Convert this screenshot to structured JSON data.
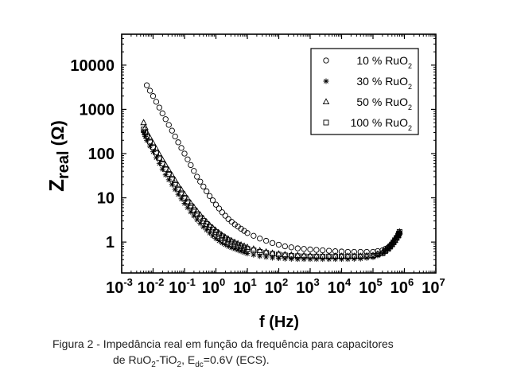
{
  "chart_data": {
    "type": "scatter",
    "xlabel": "f (Hz)",
    "ylabel_main": "Z",
    "ylabel_sub": "real",
    "ylabel_unit": "(Ω)",
    "x_scale": "log",
    "y_scale": "log",
    "xlim": [
      0.001,
      10000000
    ],
    "ylim": [
      0.2,
      50000
    ],
    "x_tick_exponents": [
      "-3",
      "-2",
      "-1",
      "0",
      "1",
      "2",
      "3",
      "4",
      "5",
      "6",
      "7"
    ],
    "x_tick_base": "10",
    "y_ticks": [
      {
        "value": 10000,
        "label": "10000"
      },
      {
        "value": 1000,
        "label": "1000"
      },
      {
        "value": 100,
        "label": "100"
      },
      {
        "value": 10,
        "label": "10"
      },
      {
        "value": 1,
        "label": "1"
      }
    ],
    "grid": false,
    "legend_position": "top-right",
    "series": [
      {
        "name": "10 % RuO2",
        "name_main": "10 % RuO",
        "name_sub": "2",
        "marker": "circle",
        "x": [
          0.0063,
          0.01,
          0.0158,
          0.025,
          0.04,
          0.063,
          0.1,
          0.158,
          0.25,
          0.4,
          0.63,
          1,
          1.58,
          2.5,
          4,
          6.3,
          10,
          25,
          63,
          158,
          400,
          1000,
          2500,
          6300,
          15800,
          40000,
          100000,
          200000,
          300000,
          400000,
          500000,
          630000,
          700000
        ],
        "y": [
          3500,
          2000,
          1100,
          600,
          330,
          180,
          100,
          55,
          30,
          18,
          11,
          7,
          4.7,
          3.3,
          2.5,
          2,
          1.6,
          1.2,
          0.95,
          0.8,
          0.72,
          0.68,
          0.65,
          0.62,
          0.6,
          0.6,
          0.6,
          0.65,
          0.75,
          0.9,
          1.1,
          1.4,
          1.6
        ]
      },
      {
        "name": "30 % RuO2",
        "name_main": "30 % RuO",
        "name_sub": "2",
        "marker": "star",
        "x": [
          0.005,
          0.0063,
          0.01,
          0.0158,
          0.025,
          0.04,
          0.063,
          0.1,
          0.158,
          0.25,
          0.4,
          0.63,
          1,
          1.58,
          2.5,
          4,
          6.3,
          10,
          25,
          63,
          158,
          400,
          1000,
          2500,
          6300,
          15800,
          40000,
          100000,
          200000,
          300000,
          400000,
          500000,
          630000,
          700000
        ],
        "y": [
          300,
          200,
          110,
          60,
          33,
          20,
          12,
          7.5,
          4.8,
          3.2,
          2.2,
          1.6,
          1.2,
          0.95,
          0.8,
          0.7,
          0.62,
          0.55,
          0.48,
          0.44,
          0.42,
          0.41,
          0.41,
          0.41,
          0.41,
          0.41,
          0.42,
          0.45,
          0.55,
          0.7,
          0.9,
          1.1,
          1.4,
          1.6
        ]
      },
      {
        "name": "50 % RuO2",
        "name_main": "50 % RuO",
        "name_sub": "2",
        "marker": "triangle",
        "x": [
          0.005,
          0.0063,
          0.01,
          0.0158,
          0.025,
          0.04,
          0.063,
          0.1,
          0.158,
          0.25,
          0.4,
          0.63,
          1,
          1.58,
          2.5,
          4,
          6.3,
          10,
          25,
          63,
          158,
          400,
          1000,
          2500,
          6300,
          15800,
          40000,
          100000,
          200000,
          300000,
          400000,
          500000,
          630000,
          700000
        ],
        "y": [
          500,
          300,
          170,
          95,
          55,
          32,
          19,
          12,
          7.5,
          5,
          3.4,
          2.4,
          1.8,
          1.4,
          1.15,
          0.98,
          0.86,
          0.76,
          0.64,
          0.56,
          0.52,
          0.5,
          0.49,
          0.48,
          0.48,
          0.48,
          0.48,
          0.5,
          0.58,
          0.72,
          0.9,
          1.1,
          1.4,
          1.7
        ]
      },
      {
        "name": "100 % RuO2",
        "name_main": "100 % RuO",
        "name_sub": "2",
        "marker": "square",
        "x": [
          0.005,
          0.0063,
          0.01,
          0.0158,
          0.025,
          0.04,
          0.063,
          0.1,
          0.158,
          0.25,
          0.4,
          0.63,
          1,
          1.58,
          2.5,
          4,
          6.3,
          10,
          25,
          63,
          158,
          400,
          1000,
          2500,
          6300,
          15800,
          40000,
          100000,
          200000,
          300000,
          400000,
          500000,
          630000,
          700000
        ],
        "y": [
          350,
          250,
          140,
          80,
          45,
          27,
          16,
          10,
          6.5,
          4.3,
          3,
          2.2,
          1.7,
          1.35,
          1.1,
          0.92,
          0.8,
          0.7,
          0.6,
          0.54,
          0.5,
          0.48,
          0.47,
          0.47,
          0.47,
          0.47,
          0.47,
          0.49,
          0.56,
          0.7,
          0.88,
          1.1,
          1.4,
          1.7
        ]
      }
    ]
  },
  "caption": {
    "line1": "Figura 2 - Impedância real em função da frequência para capacitores",
    "line2_a": "de RuO",
    "line2_a_sub": "2",
    "line2_b": "-TiO",
    "line2_b_sub": "2",
    "line2_c": ", E",
    "line2_c_sub": "dc",
    "line2_d": "=0.6V (ECS)."
  }
}
